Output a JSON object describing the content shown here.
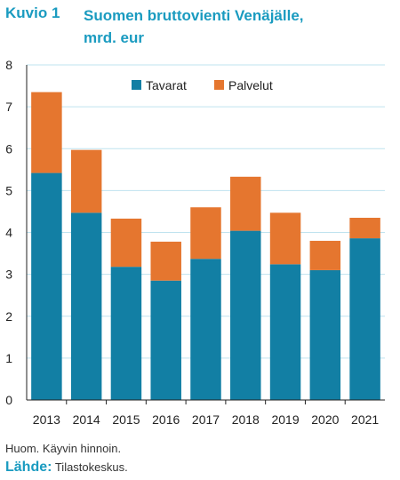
{
  "header": {
    "figure_label": "Kuvio 1",
    "title_line1": "Suomen bruttovienti Venäjälle,",
    "title_line2": "mrd. eur"
  },
  "footer": {
    "note": "Huom. Käyvin hinnoin.",
    "source_label": "Lähde:",
    "source_text": "Tilastokeskus."
  },
  "chart_data": {
    "type": "bar",
    "stacked": true,
    "categories": [
      "2013",
      "2014",
      "2015",
      "2016",
      "2017",
      "2018",
      "2019",
      "2020",
      "2021"
    ],
    "series": [
      {
        "name": "Tavarat",
        "color": "#127fa4",
        "values": [
          5.42,
          4.47,
          3.18,
          2.85,
          3.37,
          4.04,
          3.24,
          3.1,
          3.86
        ]
      },
      {
        "name": "Palvelut",
        "color": "#e5762f",
        "values": [
          1.93,
          1.5,
          1.15,
          0.93,
          1.23,
          1.29,
          1.23,
          0.7,
          0.49
        ]
      }
    ],
    "yticks": [
      0,
      1,
      2,
      3,
      4,
      5,
      6,
      7,
      8
    ],
    "ylim": [
      0,
      8
    ],
    "grid": true,
    "legend_position": "top-center"
  }
}
